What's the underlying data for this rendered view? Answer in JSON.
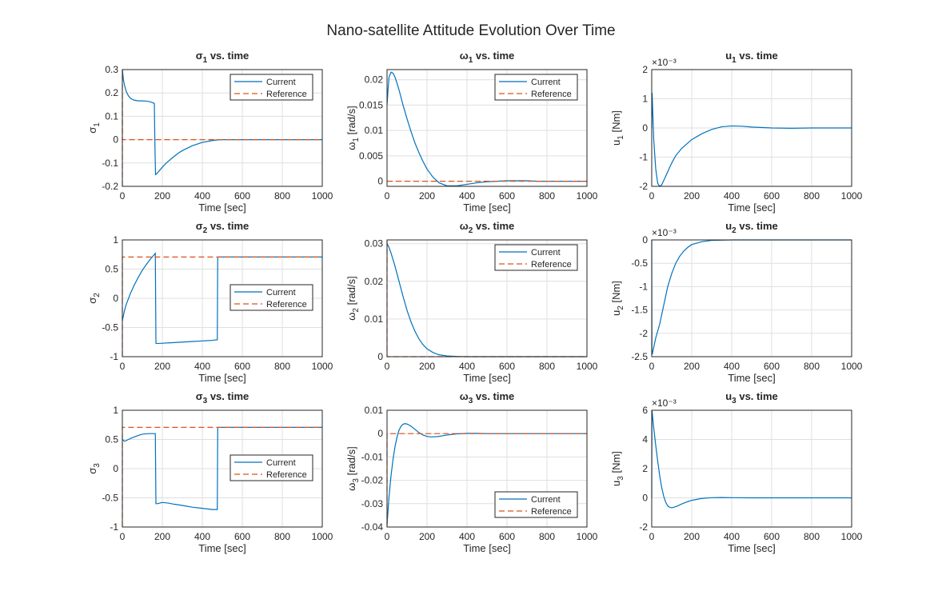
{
  "figure_title": "Nano-satellite Attitude Evolution Over Time",
  "colors": {
    "current": "#0072BD",
    "reference": "#D95319"
  },
  "chart_data": [
    {
      "id": "sigma1",
      "type": "line",
      "title": {
        "sym": "σ",
        "sub": "1",
        "rest": " vs. time"
      },
      "xlabel": "Time [sec]",
      "ylabel": {
        "sym": "σ",
        "sub": "1",
        "rest": ""
      },
      "xlim": [
        0,
        1000
      ],
      "ylim": [
        -0.2,
        0.3
      ],
      "xticks": [
        0,
        200,
        400,
        600,
        800,
        1000
      ],
      "yticks": [
        -0.2,
        -0.1,
        0,
        0.1,
        0.2,
        0.3
      ],
      "yticklabels": [
        "-0.2",
        "-0.1",
        "0",
        "0.1",
        "0.2",
        "0.3"
      ],
      "legend": "top-right",
      "series": [
        {
          "name": "Current",
          "x": [
            0,
            5,
            10,
            20,
            30,
            40,
            50,
            60,
            80,
            100,
            120,
            140,
            160,
            163,
            166,
            170,
            180,
            200,
            220,
            250,
            280,
            300,
            350,
            400,
            450,
            480,
            500,
            600,
            700,
            800,
            900,
            1000
          ],
          "y": [
            0.3,
            0.26,
            0.235,
            0.205,
            0.188,
            0.178,
            0.172,
            0.169,
            0.166,
            0.166,
            0.165,
            0.162,
            0.155,
            -0.03,
            -0.15,
            -0.148,
            -0.138,
            -0.118,
            -0.1,
            -0.078,
            -0.058,
            -0.047,
            -0.026,
            -0.012,
            -0.004,
            -0.001,
            0,
            0,
            0,
            0,
            0,
            0
          ]
        },
        {
          "name": "Reference",
          "style": "dashed",
          "x": [
            0,
            0,
            0.5,
            1000
          ],
          "y": [
            -0.2,
            0.3,
            0,
            0
          ]
        }
      ]
    },
    {
      "id": "omega1",
      "type": "line",
      "title": {
        "sym": "ω",
        "sub": "1",
        "rest": " vs. time"
      },
      "xlabel": "Time [sec]",
      "ylabel": {
        "sym": "ω",
        "sub": "1",
        "rest": " [rad/s]"
      },
      "xlim": [
        0,
        1000
      ],
      "ylim": [
        -0.001,
        0.022
      ],
      "xticks": [
        0,
        200,
        400,
        600,
        800,
        1000
      ],
      "yticks": [
        0,
        0.005,
        0.01,
        0.015,
        0.02
      ],
      "yticklabels": [
        "0",
        "0.005",
        "0.01",
        "0.015",
        "0.02"
      ],
      "legend": "top-right",
      "series": [
        {
          "name": "Current",
          "x": [
            0,
            5,
            10,
            20,
            30,
            40,
            50,
            60,
            80,
            100,
            120,
            140,
            160,
            180,
            200,
            230,
            260,
            300,
            350,
            400,
            450,
            500,
            550,
            600,
            650,
            700,
            750,
            800,
            900,
            1000
          ],
          "y": [
            0.015,
            0.018,
            0.0205,
            0.0215,
            0.0213,
            0.0205,
            0.0193,
            0.018,
            0.015,
            0.0123,
            0.0098,
            0.0075,
            0.0056,
            0.0039,
            0.0024,
            0.0008,
            -0.0003,
            -0.0009,
            -0.0009,
            -0.0006,
            -0.0003,
            -0.0001,
            0,
            0.0001,
            0.0001,
            0.0001,
            0,
            0,
            0,
            0
          ]
        },
        {
          "name": "Reference",
          "style": "dashed",
          "x": [
            0,
            1000
          ],
          "y": [
            0,
            0
          ]
        }
      ]
    },
    {
      "id": "u1",
      "type": "line",
      "title": {
        "sym": "u",
        "sub": "1",
        "rest": " vs. time"
      },
      "xlabel": "Time [sec]",
      "ylabel": {
        "sym": "u",
        "sub": "1",
        "rest": " [Nm]"
      },
      "exponent": "×10⁻³",
      "xlim": [
        0,
        1000
      ],
      "ylim": [
        -0.002,
        0.002
      ],
      "xticks": [
        0,
        200,
        400,
        600,
        800,
        1000
      ],
      "yticks": [
        -0.002,
        -0.001,
        0,
        0.001,
        0.002
      ],
      "yticklabels": [
        "-2",
        "-1",
        "0",
        "1",
        "2"
      ],
      "series": [
        {
          "name": "Current",
          "x": [
            0,
            2,
            5,
            10,
            20,
            30,
            40,
            50,
            60,
            80,
            100,
            120,
            150,
            200,
            250,
            300,
            350,
            400,
            450,
            500,
            600,
            700,
            800,
            900,
            1000
          ],
          "y": [
            0,
            0.0012,
            0.0006,
            -0.0004,
            -0.0014,
            -0.0019,
            -0.002,
            -0.00195,
            -0.0018,
            -0.0015,
            -0.0012,
            -0.00095,
            -0.0007,
            -0.0004,
            -0.0002,
            -5e-05,
            4e-05,
            7e-05,
            6e-05,
            3e-05,
            0,
            -1e-05,
            0,
            0,
            0
          ]
        }
      ]
    },
    {
      "id": "sigma2",
      "type": "line",
      "title": {
        "sym": "σ",
        "sub": "2",
        "rest": " vs. time"
      },
      "xlabel": "Time [sec]",
      "ylabel": {
        "sym": "σ",
        "sub": "2",
        "rest": ""
      },
      "xlim": [
        0,
        1000
      ],
      "ylim": [
        -1,
        1
      ],
      "xticks": [
        0,
        200,
        400,
        600,
        800,
        1000
      ],
      "yticks": [
        -1,
        -0.5,
        0,
        0.5,
        1
      ],
      "yticklabels": [
        "-1",
        "-0.5",
        "0",
        "0.5",
        "1"
      ],
      "legend": "middle-right",
      "series": [
        {
          "name": "Current",
          "x": [
            0,
            10,
            20,
            40,
            60,
            80,
            100,
            120,
            140,
            160,
            165,
            168,
            175,
            200,
            250,
            300,
            350,
            400,
            450,
            475,
            477,
            480,
            500,
            600,
            700,
            800,
            900,
            1000
          ],
          "y": [
            -0.38,
            -0.22,
            -0.1,
            0.08,
            0.23,
            0.36,
            0.48,
            0.58,
            0.67,
            0.75,
            0.77,
            -0.77,
            -0.775,
            -0.77,
            -0.76,
            -0.75,
            -0.74,
            -0.73,
            -0.72,
            -0.71,
            0.7,
            0.707,
            0.707,
            0.707,
            0.707,
            0.707,
            0.707,
            0.707
          ]
        },
        {
          "name": "Reference",
          "style": "dashed",
          "x": [
            0,
            0,
            0.5,
            1000
          ],
          "y": [
            -1,
            0.707,
            0.707,
            0.707
          ]
        }
      ]
    },
    {
      "id": "omega2",
      "type": "line",
      "title": {
        "sym": "ω",
        "sub": "2",
        "rest": " vs. time"
      },
      "xlabel": "Time [sec]",
      "ylabel": {
        "sym": "ω",
        "sub": "2",
        "rest": " [rad/s]"
      },
      "xlim": [
        0,
        1000
      ],
      "ylim": [
        0,
        0.031
      ],
      "xticks": [
        0,
        200,
        400,
        600,
        800,
        1000
      ],
      "yticks": [
        0,
        0.01,
        0.02,
        0.03
      ],
      "yticklabels": [
        "0",
        "0.01",
        "0.02",
        "0.03"
      ],
      "legend": "top-right",
      "series": [
        {
          "name": "Current",
          "x": [
            0,
            10,
            20,
            40,
            60,
            80,
            100,
            120,
            140,
            160,
            180,
            200,
            230,
            260,
            300,
            350,
            400,
            500,
            600,
            700,
            800,
            900,
            1000
          ],
          "y": [
            0.03,
            0.029,
            0.0275,
            0.024,
            0.02,
            0.016,
            0.0123,
            0.0092,
            0.0067,
            0.0047,
            0.0032,
            0.0021,
            0.0011,
            0.0005,
            0.0002,
            5e-05,
            0,
            0,
            0,
            0,
            0,
            0,
            0
          ]
        },
        {
          "name": "Reference",
          "style": "dashed",
          "x": [
            0,
            0,
            0.5,
            1000
          ],
          "y": [
            0.031,
            0,
            0,
            0
          ]
        }
      ]
    },
    {
      "id": "u2",
      "type": "line",
      "title": {
        "sym": "u",
        "sub": "2",
        "rest": " vs. time"
      },
      "xlabel": "Time [sec]",
      "ylabel": {
        "sym": "u",
        "sub": "2",
        "rest": " [Nm]"
      },
      "exponent": "×10⁻³",
      "xlim": [
        0,
        1000
      ],
      "ylim": [
        -0.0025,
        0
      ],
      "xticks": [
        0,
        200,
        400,
        600,
        800,
        1000
      ],
      "yticks": [
        -0.0025,
        -0.002,
        -0.0015,
        -0.001,
        -0.0005,
        0
      ],
      "yticklabels": [
        "-2.5",
        "-2",
        "-1.5",
        "-1",
        "-0.5",
        "0"
      ],
      "series": [
        {
          "name": "Current",
          "x": [
            0,
            1,
            3,
            5,
            10,
            20,
            30,
            40,
            50,
            60,
            70,
            80,
            100,
            120,
            140,
            160,
            180,
            200,
            250,
            300,
            400,
            500,
            600,
            800,
            1000
          ],
          "y": [
            0,
            -0.0024,
            -0.00245,
            -0.0024,
            -0.0023,
            -0.0021,
            -0.00195,
            -0.0018,
            -0.0016,
            -0.0014,
            -0.0012,
            -0.001,
            -0.00072,
            -0.0005,
            -0.00035,
            -0.00024,
            -0.00016,
            -0.0001,
            -4e-05,
            -1e-05,
            0,
            0,
            0,
            0,
            0
          ]
        }
      ]
    },
    {
      "id": "sigma3",
      "type": "line",
      "title": {
        "sym": "σ",
        "sub": "3",
        "rest": " vs. time"
      },
      "xlabel": "Time [sec]",
      "ylabel": {
        "sym": "σ",
        "sub": "3",
        "rest": ""
      },
      "xlim": [
        0,
        1000
      ],
      "ylim": [
        -1,
        1
      ],
      "xticks": [
        0,
        200,
        400,
        600,
        800,
        1000
      ],
      "yticks": [
        -1,
        -0.5,
        0,
        0.5,
        1
      ],
      "yticklabels": [
        "-1",
        "-0.5",
        "0",
        "0.5",
        "1"
      ],
      "legend": "middle-right",
      "series": [
        {
          "name": "Current",
          "x": [
            0,
            10,
            20,
            30,
            50,
            80,
            100,
            130,
            160,
            165,
            168,
            175,
            200,
            230,
            260,
            300,
            350,
            400,
            450,
            475,
            477,
            480,
            500,
            600,
            700,
            800,
            900,
            1000
          ],
          "y": [
            0.5,
            0.47,
            0.48,
            0.5,
            0.53,
            0.57,
            0.59,
            0.6,
            0.6,
            0.6,
            -0.6,
            -0.6,
            -0.58,
            -0.59,
            -0.61,
            -0.63,
            -0.66,
            -0.68,
            -0.7,
            -0.7,
            0.7,
            0.707,
            0.707,
            0.707,
            0.707,
            0.707,
            0.707,
            0.707
          ]
        },
        {
          "name": "Reference",
          "style": "dashed",
          "x": [
            0,
            0,
            0.5,
            1000
          ],
          "y": [
            -1,
            0.707,
            0.707,
            0.707
          ]
        }
      ]
    },
    {
      "id": "omega3",
      "type": "line",
      "title": {
        "sym": "ω",
        "sub": "3",
        "rest": " vs. time"
      },
      "xlabel": "Time [sec]",
      "ylabel": {
        "sym": "ω",
        "sub": "3",
        "rest": " [rad/s]"
      },
      "xlim": [
        0,
        1000
      ],
      "ylim": [
        -0.04,
        0.01
      ],
      "xticks": [
        0,
        200,
        400,
        600,
        800,
        1000
      ],
      "yticks": [
        -0.04,
        -0.03,
        -0.02,
        -0.01,
        0,
        0.01
      ],
      "yticklabels": [
        "-0.04",
        "-0.03",
        "-0.02",
        "-0.01",
        "0",
        "0.01"
      ],
      "legend": "bottom-right",
      "series": [
        {
          "name": "Current",
          "x": [
            0,
            5,
            10,
            20,
            30,
            40,
            50,
            60,
            70,
            80,
            90,
            100,
            120,
            140,
            160,
            180,
            200,
            220,
            250,
            280,
            300,
            350,
            400,
            450,
            500,
            600,
            700,
            800,
            1000
          ],
          "y": [
            -0.039,
            -0.033,
            -0.027,
            -0.018,
            -0.011,
            -0.0055,
            -0.0015,
            0.0015,
            0.0032,
            0.004,
            0.0043,
            0.0041,
            0.0032,
            0.0018,
            0.0004,
            -0.0006,
            -0.0012,
            -0.0014,
            -0.0013,
            -0.0009,
            -0.0006,
            -0.0001,
            0.0001,
            0.0001,
            0,
            0,
            0,
            0,
            0
          ]
        },
        {
          "name": "Reference",
          "style": "dashed",
          "x": [
            0,
            0,
            0.5,
            1000
          ],
          "y": [
            -0.04,
            0,
            0,
            0
          ]
        }
      ]
    },
    {
      "id": "u3",
      "type": "line",
      "title": {
        "sym": "u",
        "sub": "3",
        "rest": " vs. time"
      },
      "xlabel": "Time [sec]",
      "ylabel": {
        "sym": "u",
        "sub": "3",
        "rest": " [Nm]"
      },
      "exponent": "×10⁻³",
      "xlim": [
        0,
        1000
      ],
      "ylim": [
        -0.002,
        0.006
      ],
      "xticks": [
        0,
        200,
        400,
        600,
        800,
        1000
      ],
      "yticks": [
        -0.002,
        0,
        0.002,
        0.004,
        0.006
      ],
      "yticklabels": [
        "-2",
        "0",
        "2",
        "4",
        "6"
      ],
      "series": [
        {
          "name": "Current",
          "x": [
            0,
            1,
            3,
            5,
            10,
            20,
            30,
            40,
            50,
            60,
            70,
            80,
            90,
            100,
            110,
            130,
            150,
            180,
            200,
            250,
            300,
            350,
            400,
            500,
            600,
            700,
            800,
            1000
          ],
          "y": [
            0,
            0.006,
            0.0058,
            0.0055,
            0.0048,
            0.0036,
            0.0025,
            0.0015,
            0.0007,
            0.0001,
            -0.0003,
            -0.00055,
            -0.00065,
            -0.00068,
            -0.00065,
            -0.00055,
            -0.00042,
            -0.00026,
            -0.00017,
            -4e-05,
            1e-05,
            2e-05,
            1e-05,
            0,
            0,
            0,
            0,
            0
          ]
        }
      ]
    }
  ]
}
